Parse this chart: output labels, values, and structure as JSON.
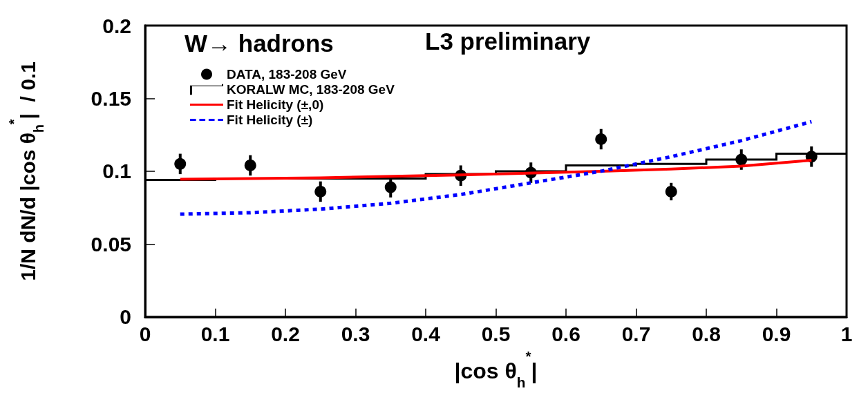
{
  "chart_data": {
    "type": "scatter",
    "title": "W→ hadrons",
    "annotations": [
      "L3 preliminary"
    ],
    "xlabel": "|cos θ$_{h}$$^{*}$|",
    "ylabel": "1/N dN/d |cos θ$_{h}$$^{*}$|  / 0.1",
    "xlim": [
      0,
      1
    ],
    "xticks": [
      0,
      0.1,
      0.2,
      0.3,
      0.4,
      0.5,
      0.6,
      0.7,
      0.8,
      0.9,
      1
    ],
    "ylim": [
      0,
      0.2
    ],
    "yticks": [
      0,
      0.05,
      0.1,
      0.15,
      0.2
    ],
    "grid": false,
    "legend": "top left",
    "series": [
      {
        "name": "DATA, 183-208 GeV",
        "marker": "circle",
        "color": "#000000",
        "x": [
          0.05,
          0.15,
          0.25,
          0.35,
          0.45,
          0.55,
          0.65,
          0.75,
          0.85,
          0.95
        ],
        "values": [
          0.105,
          0.104,
          0.086,
          0.089,
          0.097,
          0.099,
          0.122,
          0.086,
          0.108,
          0.11
        ],
        "errors": [
          0.007,
          0.007,
          0.007,
          0.007,
          0.007,
          0.007,
          0.007,
          0.006,
          0.007,
          0.007
        ]
      },
      {
        "name": "KORALW MC, 183-208 GeV",
        "type": "histogram",
        "color": "#000000",
        "bins": [
          0,
          0.1,
          0.2,
          0.3,
          0.4,
          0.5,
          0.6,
          0.7,
          0.8,
          0.9,
          1
        ],
        "values": [
          0.094,
          0.095,
          0.095,
          0.095,
          0.098,
          0.1,
          0.104,
          0.105,
          0.108,
          0.112
        ]
      },
      {
        "name": "Fit Helicity (±,0)",
        "type": "line",
        "line_style": "solid",
        "color": "#ff0000",
        "x": [
          0.05,
          0.25,
          0.45,
          0.65,
          0.75,
          0.85,
          0.95
        ],
        "values": [
          0.0945,
          0.0955,
          0.0975,
          0.1,
          0.1015,
          0.1035,
          0.1075
        ]
      },
      {
        "name": "Fit Helicity (±)",
        "type": "line",
        "line_style": "dashed",
        "color": "#0000ff",
        "x": [
          0.05,
          0.15,
          0.25,
          0.35,
          0.45,
          0.55,
          0.65,
          0.75,
          0.85,
          0.95
        ],
        "values": [
          0.0705,
          0.0715,
          0.074,
          0.078,
          0.084,
          0.092,
          0.1,
          0.11,
          0.121,
          0.134
        ]
      }
    ]
  }
}
